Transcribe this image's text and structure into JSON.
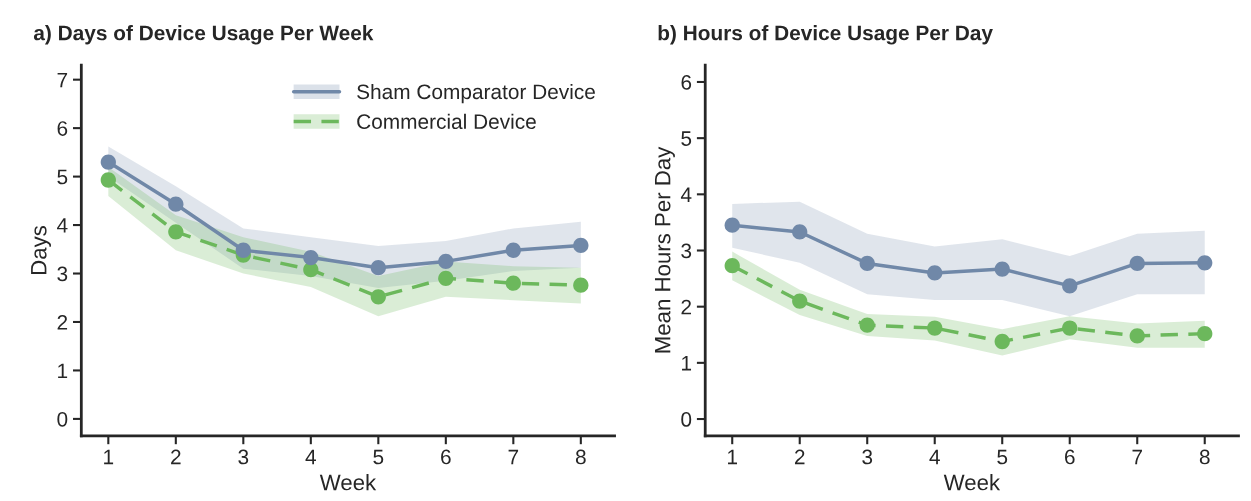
{
  "chart_data": [
    {
      "type": "line",
      "title": "a) Days of Device Usage Per Week",
      "xlabel": "Week",
      "ylabel": "Days",
      "x": [
        1,
        2,
        3,
        4,
        5,
        6,
        7,
        8
      ],
      "xlim": [
        0.6,
        8.5
      ],
      "xticks": [
        1,
        2,
        3,
        4,
        5,
        6,
        7,
        8
      ],
      "ylim": [
        -0.35,
        7.3
      ],
      "yticks": [
        0,
        1,
        2,
        3,
        4,
        5,
        6,
        7
      ],
      "marker": "circle",
      "legend": "top right",
      "grid": false,
      "series": [
        {
          "name": "Sham Comparator Device",
          "color": "#7088a8",
          "line_style": "solid",
          "values": [
            5.3,
            4.43,
            3.48,
            3.33,
            3.12,
            3.25,
            3.48,
            3.58
          ],
          "lower": [
            5.0,
            4.05,
            3.1,
            2.95,
            2.7,
            2.85,
            3.05,
            3.12
          ],
          "upper": [
            5.62,
            4.8,
            3.93,
            3.75,
            3.57,
            3.67,
            3.93,
            4.07
          ]
        },
        {
          "name": "Commercial Device",
          "color": "#6cb85c",
          "line_style": "dashed",
          "values": [
            4.93,
            3.86,
            3.38,
            3.08,
            2.52,
            2.9,
            2.8,
            2.76
          ],
          "lower": [
            4.6,
            3.48,
            3.0,
            2.72,
            2.12,
            2.52,
            2.45,
            2.38
          ],
          "upper": [
            5.2,
            4.2,
            3.75,
            3.45,
            2.95,
            3.25,
            3.15,
            3.12
          ]
        }
      ]
    },
    {
      "type": "line",
      "title": "b) Hours of Device Usage Per Day",
      "xlabel": "Week",
      "ylabel": "Mean Hours Per Day",
      "x": [
        1,
        2,
        3,
        4,
        5,
        6,
        7,
        8
      ],
      "xlim": [
        0.6,
        8.5
      ],
      "xticks": [
        1,
        2,
        3,
        4,
        5,
        6,
        7,
        8
      ],
      "ylim": [
        -0.3,
        6.3
      ],
      "yticks": [
        0,
        1,
        2,
        3,
        4,
        5,
        6
      ],
      "marker": "circle",
      "legend": false,
      "grid": false,
      "series": [
        {
          "color": "#7088a8",
          "line_style": "solid",
          "values": [
            3.45,
            3.33,
            2.77,
            2.6,
            2.67,
            2.37,
            2.77,
            2.78
          ],
          "lower": [
            3.05,
            2.78,
            2.22,
            2.12,
            2.12,
            1.83,
            2.22,
            2.22
          ],
          "upper": [
            3.83,
            3.87,
            3.3,
            3.07,
            3.2,
            2.9,
            3.3,
            3.35
          ]
        },
        {
          "color": "#6cb85c",
          "line_style": "dashed",
          "values": [
            2.73,
            2.1,
            1.67,
            1.62,
            1.38,
            1.62,
            1.48,
            1.52
          ],
          "lower": [
            2.47,
            1.85,
            1.48,
            1.4,
            1.13,
            1.42,
            1.27,
            1.27
          ],
          "upper": [
            2.98,
            2.3,
            1.87,
            1.82,
            1.6,
            1.83,
            1.7,
            1.75
          ]
        }
      ]
    }
  ]
}
